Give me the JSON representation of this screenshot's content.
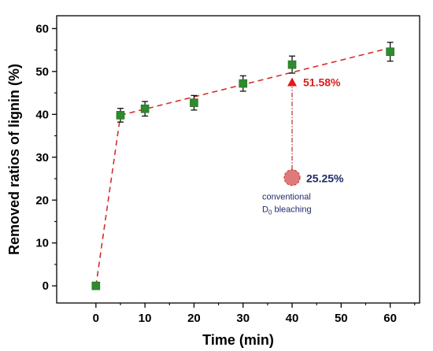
{
  "chart_data": {
    "type": "scatter",
    "title": "",
    "xlabel": "Time (min)",
    "ylabel": "Removed ratios of lignin (%)",
    "xlim": [
      -8,
      66
    ],
    "ylim": [
      -4,
      63
    ],
    "xticks": [
      0,
      10,
      20,
      30,
      40,
      50,
      60
    ],
    "yticks": [
      0,
      10,
      20,
      30,
      40,
      50,
      60
    ],
    "grid": false,
    "series": [
      {
        "marker": "square",
        "color": "#2e8b2e",
        "line_style": "dashed",
        "line_color": "#d62d2d",
        "x": [
          0,
          5,
          10,
          20,
          30,
          40,
          60
        ],
        "y": [
          0,
          39.8,
          41.3,
          42.7,
          47.2,
          51.6,
          54.6
        ],
        "error": [
          0,
          1.6,
          1.7,
          1.7,
          1.8,
          2.0,
          2.2
        ]
      }
    ],
    "fit_segments": [
      {
        "from": [
          0,
          0
        ],
        "to": [
          5,
          39.8
        ]
      },
      {
        "from": [
          5,
          39.8
        ],
        "to": [
          60,
          55.5
        ]
      }
    ],
    "annotations": {
      "bleach_point": {
        "x": 40,
        "y": 25.25,
        "label": "25.25%",
        "color": "#e07a7a",
        "text_color": "#1f2a6b"
      },
      "arrow_target": {
        "x": 40,
        "y": 47.5,
        "label": "51.58%",
        "color": "#e01b1b"
      },
      "note_line1": "conventional",
      "note_line2": "D",
      "note_sub": "0",
      "note_line2_rest": " bleaching"
    }
  }
}
